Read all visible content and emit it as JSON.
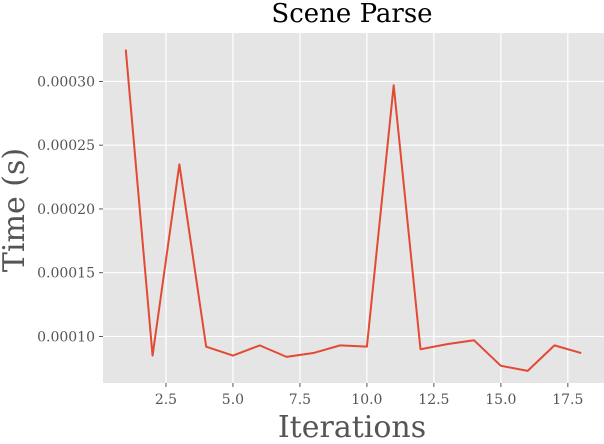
{
  "chart_data": {
    "type": "line",
    "title": "Scene Parse",
    "xlabel": "Iterations",
    "ylabel": "Time (s)",
    "xlim": [
      0.15,
      18.85
    ],
    "ylim": [
      6.35e-05,
      0.000338
    ],
    "xticks": [
      2.5,
      5.0,
      7.5,
      10.0,
      12.5,
      15.0,
      17.5
    ],
    "xtick_labels": [
      "2.5",
      "5.0",
      "7.5",
      "10.0",
      "12.5",
      "15.0",
      "17.5"
    ],
    "yticks": [
      0.0001,
      0.00015,
      0.0002,
      0.00025,
      0.0003
    ],
    "ytick_labels": [
      "0.00010",
      "0.00015",
      "0.00020",
      "0.00025",
      "0.00030"
    ],
    "grid": true,
    "background": "#e5e5e5",
    "grid_color": "#ffffff",
    "series": [
      {
        "color": "#e24a33",
        "x": [
          1,
          2,
          3,
          4,
          5,
          6,
          7,
          8,
          9,
          10,
          11,
          12,
          13,
          14,
          15,
          16,
          17,
          18
        ],
        "y": [
          0.000325,
          8.5e-05,
          0.000235,
          9.2e-05,
          8.5e-05,
          9.3e-05,
          8.4e-05,
          8.7e-05,
          9.3e-05,
          9.2e-05,
          0.000297,
          9e-05,
          9.4e-05,
          9.7e-05,
          7.7e-05,
          7.3e-05,
          9.3e-05,
          8.7e-05
        ]
      }
    ]
  }
}
